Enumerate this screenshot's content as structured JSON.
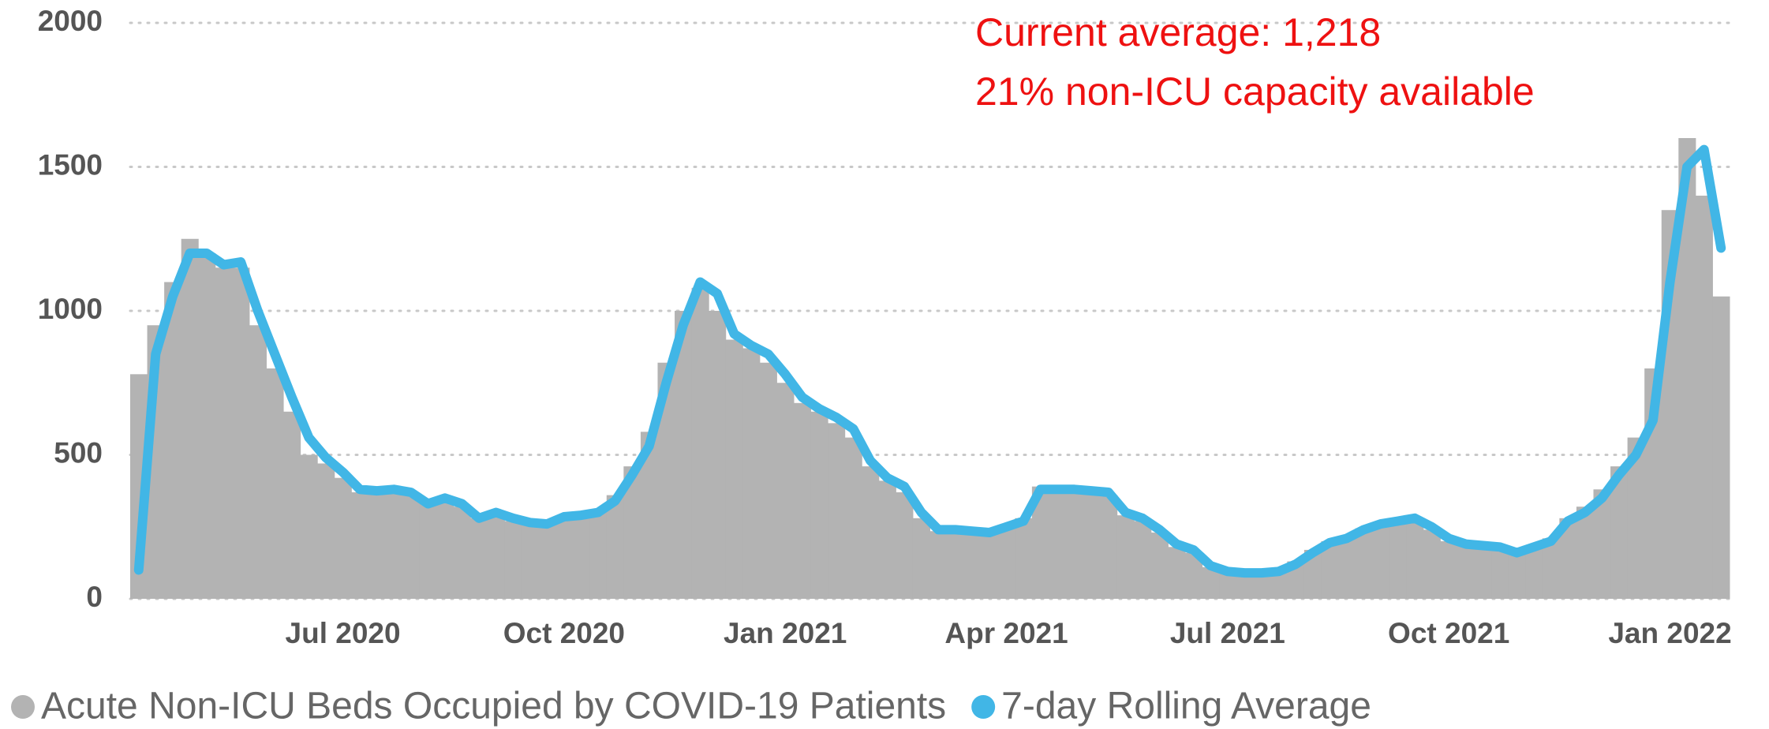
{
  "chart_data": {
    "type": "combo",
    "annotations": [
      "Current average: 1,218",
      "21% non-ICU capacity available"
    ],
    "categories": [
      null,
      null,
      null,
      null,
      null,
      null,
      null,
      null,
      null,
      null,
      null,
      null,
      "Jul 2020",
      null,
      null,
      null,
      null,
      null,
      null,
      null,
      null,
      null,
      null,
      null,
      null,
      "Oct 2020",
      null,
      null,
      null,
      null,
      null,
      null,
      null,
      null,
      null,
      null,
      null,
      null,
      "Jan 2021",
      null,
      null,
      null,
      null,
      null,
      null,
      null,
      null,
      null,
      null,
      null,
      null,
      "Apr 2021",
      null,
      null,
      null,
      null,
      null,
      null,
      null,
      null,
      null,
      null,
      null,
      null,
      "Jul 2021",
      null,
      null,
      null,
      null,
      null,
      null,
      null,
      null,
      null,
      null,
      null,
      null,
      "Oct 2021",
      null,
      null,
      null,
      null,
      null,
      null,
      null,
      null,
      null,
      null,
      null,
      null,
      "Jan 2022",
      null,
      null,
      null
    ],
    "series": [
      {
        "name": "Acute Non-ICU Beds Occupied by COVID-19 Patients",
        "type": "bar",
        "color": "#b3b3b3",
        "values": [
          780,
          950,
          1100,
          1250,
          1200,
          1150,
          1150,
          950,
          800,
          650,
          500,
          470,
          420,
          370,
          370,
          380,
          360,
          330,
          350,
          320,
          280,
          300,
          270,
          260,
          270,
          290,
          290,
          310,
          360,
          460,
          580,
          820,
          1000,
          1080,
          1000,
          900,
          870,
          820,
          750,
          680,
          650,
          610,
          560,
          460,
          410,
          370,
          280,
          235,
          235,
          230,
          230,
          255,
          280,
          390,
          380,
          375,
          370,
          360,
          290,
          270,
          230,
          180,
          160,
          110,
          90,
          88,
          90,
          100,
          130,
          170,
          200,
          215,
          245,
          265,
          275,
          270,
          240,
          200,
          185,
          180,
          175,
          165,
          185,
          210,
          280,
          320,
          380,
          460,
          560,
          800,
          1350,
          1600,
          1400,
          1050
        ]
      },
      {
        "name": "7-day Rolling Average",
        "type": "line",
        "color": "#41b6e6",
        "values": [
          100,
          850,
          1050,
          1200,
          1200,
          1160,
          1170,
          1000,
          850,
          700,
          560,
          490,
          440,
          380,
          375,
          380,
          370,
          330,
          350,
          330,
          280,
          300,
          280,
          265,
          260,
          285,
          290,
          300,
          340,
          430,
          530,
          750,
          950,
          1100,
          1060,
          920,
          880,
          850,
          780,
          700,
          660,
          630,
          590,
          480,
          420,
          390,
          300,
          240,
          240,
          235,
          230,
          250,
          270,
          380,
          380,
          380,
          375,
          370,
          300,
          280,
          240,
          190,
          170,
          115,
          95,
          90,
          90,
          95,
          120,
          160,
          195,
          210,
          240,
          260,
          270,
          280,
          250,
          210,
          190,
          185,
          180,
          160,
          180,
          200,
          270,
          300,
          350,
          430,
          500,
          620,
          1100,
          1500,
          1560,
          1218
        ]
      }
    ],
    "ylim": [
      0,
      2000
    ],
    "yticks": [
      0,
      500,
      1000,
      1500,
      2000
    ],
    "grid": true
  }
}
